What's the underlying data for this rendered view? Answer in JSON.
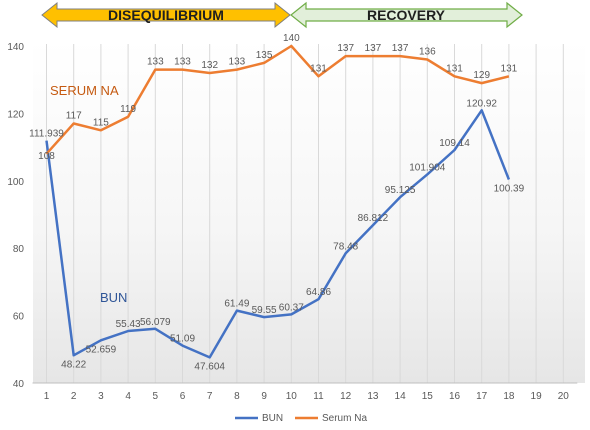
{
  "chart_data": {
    "type": "line",
    "x": [
      1,
      2,
      3,
      4,
      5,
      6,
      7,
      8,
      9,
      10,
      11,
      12,
      13,
      14,
      15,
      16,
      17,
      18
    ],
    "x_ticks": [
      1,
      2,
      3,
      4,
      5,
      6,
      7,
      8,
      9,
      10,
      11,
      12,
      13,
      14,
      15,
      16,
      17,
      18,
      19,
      20
    ],
    "y_ticks": [
      40,
      60,
      80,
      100,
      120,
      140
    ],
    "ylim": [
      40,
      140
    ],
    "xlim": [
      1,
      20
    ],
    "grid": "vertical",
    "legend_position": "bottom",
    "series": [
      {
        "name": "BUN",
        "color": "#4472C4",
        "values": [
          111.939,
          48.22,
          52.659,
          55.43,
          56.079,
          51.09,
          47.604,
          61.49,
          59.55,
          60.37,
          64.86,
          78.48,
          86.812,
          95.125,
          101.904,
          109.14,
          120.92,
          100.39
        ],
        "labels": [
          "111.939",
          "48.22",
          "52.659",
          "55.43",
          "56.079",
          "51.09",
          "47.604",
          "61.49",
          "59.55",
          "60.37",
          "64.86",
          "78.48",
          "86.812",
          "95.125",
          "101.904",
          "109.14",
          "120.92",
          "100.39"
        ]
      },
      {
        "name": "Serum Na",
        "color": "#ED7D31",
        "values": [
          108,
          117,
          115,
          119,
          133,
          133,
          132,
          133,
          135,
          140,
          131,
          137,
          137,
          137,
          136,
          131,
          129,
          131
        ],
        "labels": [
          "108",
          "117",
          "115",
          "119",
          "133",
          "133",
          "132",
          "133",
          "135",
          "140",
          "131",
          "137",
          "137",
          "137",
          "136",
          "131",
          "129",
          "131"
        ]
      }
    ],
    "annotations": {
      "disequilibrium": "DISEQUILIBRIUM",
      "recovery": "RECOVERY",
      "serum_na_note": "SERUM NA",
      "bun_note": "BUN"
    },
    "colors": {
      "disequilibrium_fill": "#FFC000",
      "recovery_fill": "#E2EFDA",
      "recovery_border": "#70AD47",
      "grid": "#D9D9D9"
    }
  }
}
